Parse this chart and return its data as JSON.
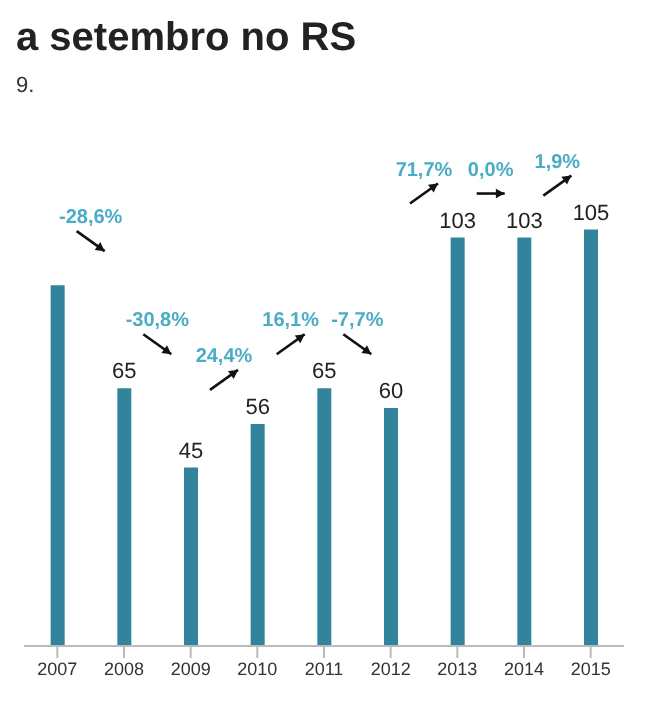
{
  "chart_data": {
    "type": "bar",
    "title": "a setembro no RS",
    "subtitle": "9.",
    "categories": [
      "2007",
      "2008",
      "2009",
      "2010",
      "2011",
      "2012",
      "2013",
      "2014",
      "2015"
    ],
    "values": [
      91,
      65,
      45,
      56,
      65,
      60,
      103,
      103,
      105
    ],
    "value_labels": [
      null,
      "65",
      "45",
      "56",
      "65",
      "60",
      "103",
      "103",
      "105"
    ],
    "color": "#31849b",
    "annotations": [
      "-28,6%",
      "-30,8%",
      "24,4%",
      "16,1%",
      "-7,7%",
      "71,7%",
      "0,0%",
      "1,9%"
    ],
    "grid": false,
    "legend": false
  }
}
